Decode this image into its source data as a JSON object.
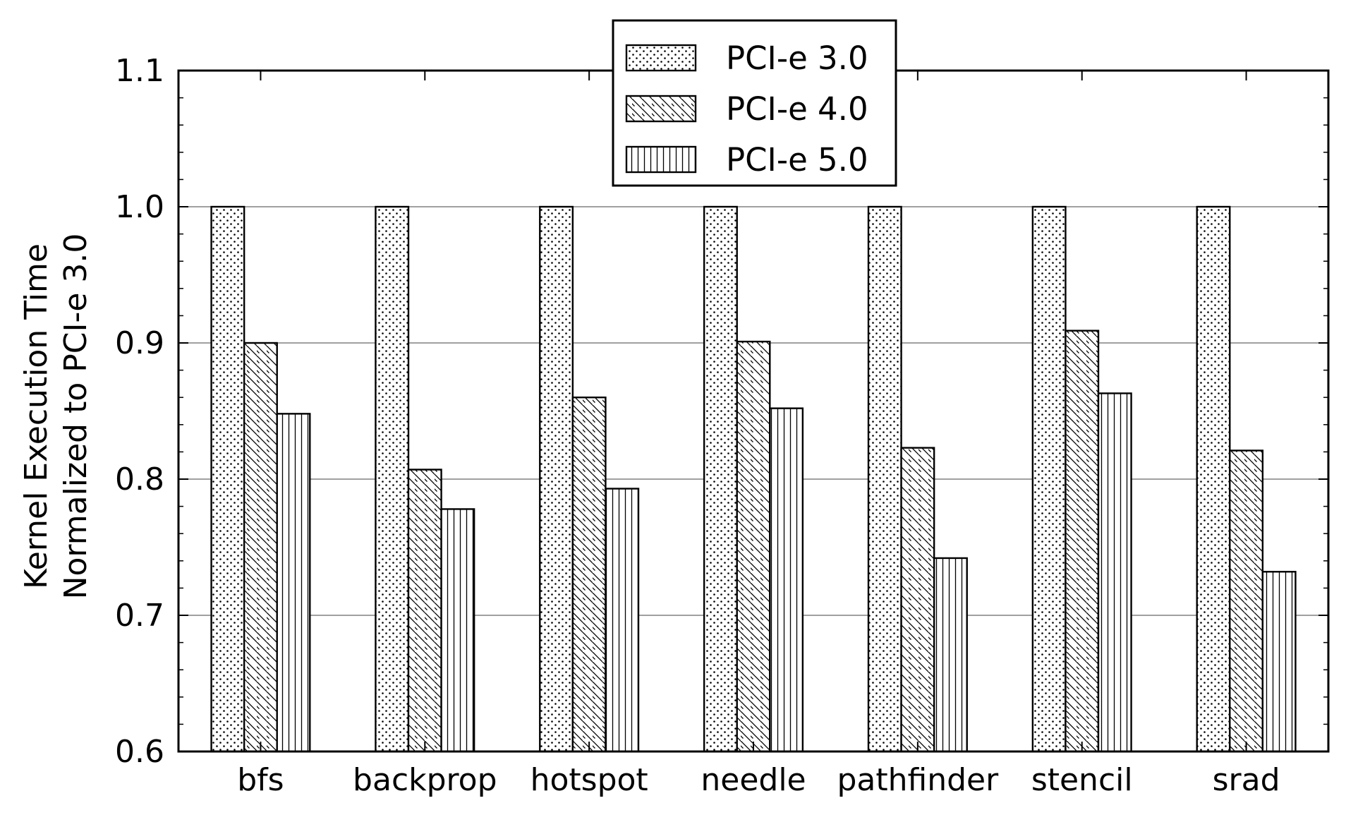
{
  "chart_data": {
    "type": "bar",
    "title": "",
    "xlabel": "",
    "ylabel_lines": [
      "Kernel Execution Time",
      "Normalized to PCI-e 3.0"
    ],
    "categories": [
      "bfs",
      "backprop",
      "hotspot",
      "needle",
      "pathfinder",
      "stencil",
      "srad"
    ],
    "series": [
      {
        "name": "PCI-e 3.0",
        "pattern": "dots",
        "values": [
          1.0,
          1.0,
          1.0,
          1.0,
          1.0,
          1.0,
          1.0
        ]
      },
      {
        "name": "PCI-e 4.0",
        "pattern": "diagonal",
        "values": [
          0.9,
          0.807,
          0.86,
          0.901,
          0.823,
          0.909,
          0.821
        ]
      },
      {
        "name": "PCI-e 5.0",
        "pattern": "vertical",
        "values": [
          0.848,
          0.778,
          0.793,
          0.852,
          0.742,
          0.863,
          0.732
        ]
      }
    ],
    "ylim": [
      0.6,
      1.1
    ],
    "yticks": [
      "0.6",
      "0.7",
      "0.8",
      "0.9",
      "1.0",
      "1.1"
    ],
    "grid": "horizontal",
    "legend_position": "top-center",
    "colors": {
      "bar_fill": "#ffffff",
      "bar_edge": "#000000",
      "grid": "#808080"
    }
  }
}
